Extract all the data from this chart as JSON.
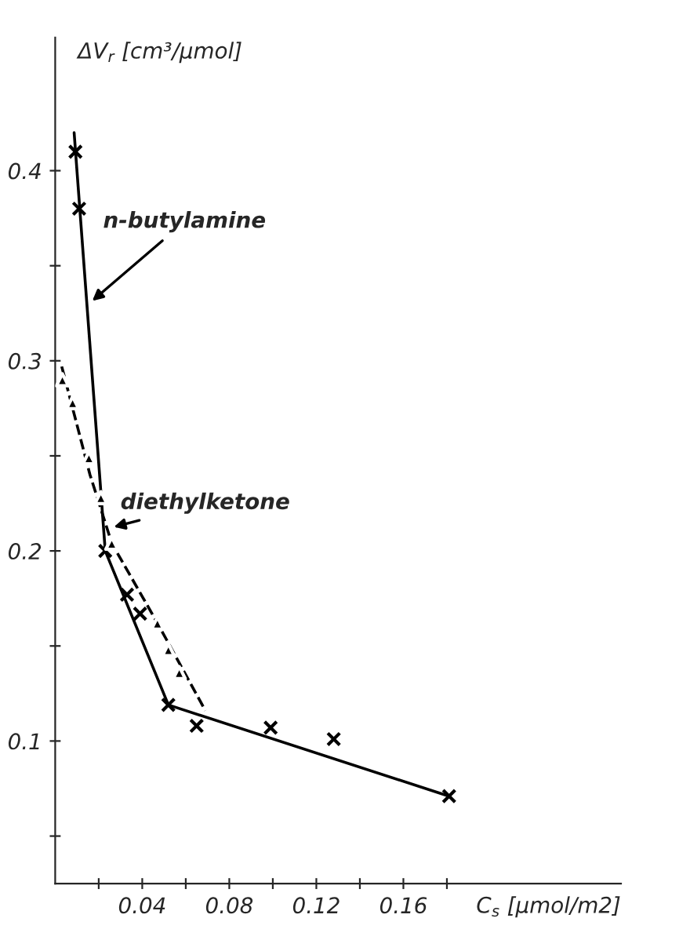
{
  "chart_data": {
    "type": "line",
    "xlabel": "C$_{s}$ [μmol/m2]",
    "ylabel": "ΔV$_{r}$ [cm³/μmol]",
    "xlim": [
      0,
      0.26
    ],
    "ylim": [
      0.025,
      0.47
    ],
    "xticks": [
      {
        "value": 0.02,
        "label": null
      },
      0.04,
      {
        "value": 0.06,
        "label": null
      },
      0.08,
      {
        "value": 0.1,
        "label": null
      },
      0.12,
      {
        "value": 0.14,
        "label": null
      },
      0.16,
      {
        "value": 0.18,
        "label": null
      }
    ],
    "yticks": [
      {
        "value": 0.05,
        "label": null
      },
      0.1,
      {
        "value": 0.15,
        "label": null
      },
      0.2,
      {
        "value": 0.25,
        "label": null
      },
      0.3,
      {
        "value": 0.35,
        "label": null
      },
      0.4
    ],
    "grid": false,
    "legend": false,
    "series": [
      {
        "name": "n-butylamine",
        "line_style": "solid",
        "marker": "none",
        "color": "#000000",
        "x": [
          0.0087,
          0.023,
          0.052,
          0.181
        ],
        "values": [
          0.42,
          0.2,
          0.119,
          0.071
        ]
      },
      {
        "name": "diethylketone",
        "line_style": "dashed",
        "marker": "none",
        "color": "#000000",
        "x": [
          0.003,
          0.016,
          0.026,
          0.047,
          0.069
        ],
        "values": [
          0.297,
          0.24,
          0.204,
          0.162,
          0.116
        ]
      },
      {
        "type": "scatter",
        "marker": "cross",
        "color": "#000000",
        "x": [
          0.0093,
          0.011,
          0.023,
          0.033,
          0.039,
          0.052,
          0.065,
          0.099,
          0.128,
          0.181
        ],
        "values": [
          0.41,
          0.38,
          0.2,
          0.177,
          0.167,
          0.119,
          0.108,
          0.107,
          0.101,
          0.071
        ]
      },
      {
        "type": "scatter",
        "marker": "triangle",
        "color": "#000000",
        "x": [
          0.0033,
          0.008,
          0.0155,
          0.021,
          0.026,
          0.047,
          0.052,
          0.057
        ],
        "values": [
          0.29,
          0.278,
          0.249,
          0.228,
          0.204,
          0.162,
          0.148,
          0.136
        ]
      }
    ]
  }
}
